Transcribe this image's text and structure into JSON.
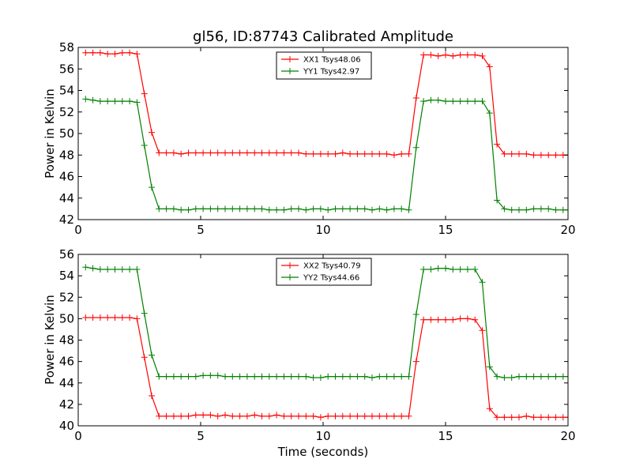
{
  "chart_data": [
    {
      "type": "line",
      "title": "gl56, ID:87743 Calibrated Amplitude",
      "xlabel": "",
      "ylabel": "Power in Kelvin",
      "xlim": [
        0,
        20
      ],
      "ylim": [
        42,
        58
      ],
      "xticks": [
        0,
        5,
        10,
        15,
        20
      ],
      "yticks": [
        42,
        44,
        46,
        48,
        50,
        52,
        54,
        56,
        58
      ],
      "legend_position": "top-center",
      "x": [
        0.3,
        0.6,
        0.9,
        1.2,
        1.5,
        1.8,
        2.1,
        2.4,
        2.7,
        3.0,
        3.3,
        3.6,
        3.9,
        4.2,
        4.5,
        4.8,
        5.1,
        5.4,
        5.7,
        6.0,
        6.3,
        6.6,
        6.9,
        7.2,
        7.5,
        7.8,
        8.1,
        8.4,
        8.7,
        9.0,
        9.3,
        9.6,
        9.9,
        10.2,
        10.5,
        10.8,
        11.1,
        11.4,
        11.7,
        12.0,
        12.3,
        12.6,
        12.9,
        13.2,
        13.5,
        13.8,
        14.1,
        14.4,
        14.7,
        15.0,
        15.3,
        15.6,
        15.9,
        16.2,
        16.5,
        16.8,
        17.1,
        17.4,
        17.7,
        18.0,
        18.3,
        18.6,
        18.9,
        19.2,
        19.5,
        19.8,
        20.0
      ],
      "series": [
        {
          "name": "XX1 Tsys48.06",
          "color": "#ff0000",
          "values": [
            57.5,
            57.5,
            57.5,
            57.4,
            57.4,
            57.5,
            57.5,
            57.4,
            53.7,
            50.1,
            48.2,
            48.2,
            48.2,
            48.1,
            48.2,
            48.2,
            48.2,
            48.2,
            48.2,
            48.2,
            48.2,
            48.2,
            48.2,
            48.2,
            48.2,
            48.2,
            48.2,
            48.2,
            48.2,
            48.2,
            48.1,
            48.1,
            48.1,
            48.1,
            48.1,
            48.2,
            48.1,
            48.1,
            48.1,
            48.1,
            48.1,
            48.1,
            48.0,
            48.1,
            48.1,
            53.3,
            57.3,
            57.3,
            57.2,
            57.3,
            57.2,
            57.3,
            57.3,
            57.3,
            57.2,
            56.2,
            49.0,
            48.1,
            48.1,
            48.1,
            48.1,
            48.0,
            48.0,
            48.0,
            48.0,
            48.0,
            48.0
          ]
        },
        {
          "name": "YY1 Tsys42.97",
          "color": "#008000",
          "values": [
            53.2,
            53.1,
            53.0,
            53.0,
            53.0,
            53.0,
            53.0,
            52.9,
            48.9,
            45.0,
            43.0,
            43.0,
            43.0,
            42.9,
            42.9,
            43.0,
            43.0,
            43.0,
            43.0,
            43.0,
            43.0,
            43.0,
            43.0,
            43.0,
            43.0,
            42.9,
            42.9,
            42.9,
            43.0,
            43.0,
            42.9,
            43.0,
            43.0,
            42.9,
            43.0,
            43.0,
            43.0,
            43.0,
            43.0,
            42.9,
            43.0,
            42.9,
            43.0,
            43.0,
            42.9,
            48.7,
            53.0,
            53.1,
            53.1,
            53.0,
            53.0,
            53.0,
            53.0,
            53.0,
            53.0,
            51.9,
            43.8,
            43.0,
            42.9,
            42.9,
            42.9,
            43.0,
            43.0,
            43.0,
            42.9,
            42.9,
            42.9
          ]
        }
      ]
    },
    {
      "type": "line",
      "title": "",
      "xlabel": "Time (seconds)",
      "ylabel": "Power in Kelvin",
      "xlim": [
        0,
        20
      ],
      "ylim": [
        40,
        56
      ],
      "xticks": [
        0,
        5,
        10,
        15,
        20
      ],
      "yticks": [
        40,
        42,
        44,
        46,
        48,
        50,
        52,
        54,
        56
      ],
      "legend_position": "top-center",
      "x": [
        0.3,
        0.6,
        0.9,
        1.2,
        1.5,
        1.8,
        2.1,
        2.4,
        2.7,
        3.0,
        3.3,
        3.6,
        3.9,
        4.2,
        4.5,
        4.8,
        5.1,
        5.4,
        5.7,
        6.0,
        6.3,
        6.6,
        6.9,
        7.2,
        7.5,
        7.8,
        8.1,
        8.4,
        8.7,
        9.0,
        9.3,
        9.6,
        9.9,
        10.2,
        10.5,
        10.8,
        11.1,
        11.4,
        11.7,
        12.0,
        12.3,
        12.6,
        12.9,
        13.2,
        13.5,
        13.8,
        14.1,
        14.4,
        14.7,
        15.0,
        15.3,
        15.6,
        15.9,
        16.2,
        16.5,
        16.8,
        17.1,
        17.4,
        17.7,
        18.0,
        18.3,
        18.6,
        18.9,
        19.2,
        19.5,
        19.8,
        20.0
      ],
      "series": [
        {
          "name": "XX2 Tsys40.79",
          "color": "#ff0000",
          "values": [
            50.1,
            50.1,
            50.1,
            50.1,
            50.1,
            50.1,
            50.1,
            50.0,
            46.4,
            42.8,
            40.9,
            40.9,
            40.9,
            40.9,
            40.9,
            41.0,
            41.0,
            41.0,
            40.9,
            41.0,
            40.9,
            40.9,
            40.9,
            41.0,
            40.9,
            40.9,
            41.0,
            40.9,
            40.9,
            40.9,
            40.9,
            40.9,
            40.8,
            40.9,
            40.9,
            40.9,
            40.9,
            40.9,
            40.9,
            40.9,
            40.9,
            40.9,
            40.9,
            40.9,
            40.9,
            46.0,
            49.9,
            49.9,
            49.9,
            49.9,
            49.9,
            50.0,
            50.0,
            49.9,
            48.9,
            41.6,
            40.8,
            40.8,
            40.8,
            40.8,
            40.9,
            40.8,
            40.8,
            40.8,
            40.8,
            40.8,
            40.8
          ]
        },
        {
          "name": "YY2 Tsys44.66",
          "color": "#008000",
          "values": [
            54.8,
            54.7,
            54.6,
            54.6,
            54.6,
            54.6,
            54.6,
            54.6,
            50.5,
            46.6,
            44.6,
            44.6,
            44.6,
            44.6,
            44.6,
            44.6,
            44.7,
            44.7,
            44.7,
            44.6,
            44.6,
            44.6,
            44.6,
            44.6,
            44.6,
            44.6,
            44.6,
            44.6,
            44.6,
            44.6,
            44.6,
            44.5,
            44.5,
            44.6,
            44.6,
            44.6,
            44.6,
            44.6,
            44.6,
            44.5,
            44.6,
            44.6,
            44.6,
            44.6,
            44.6,
            50.4,
            54.6,
            54.6,
            54.7,
            54.7,
            54.6,
            54.6,
            54.6,
            54.6,
            53.4,
            45.5,
            44.6,
            44.5,
            44.5,
            44.6,
            44.6,
            44.6,
            44.6,
            44.6,
            44.6,
            44.6,
            44.6
          ]
        }
      ]
    }
  ]
}
